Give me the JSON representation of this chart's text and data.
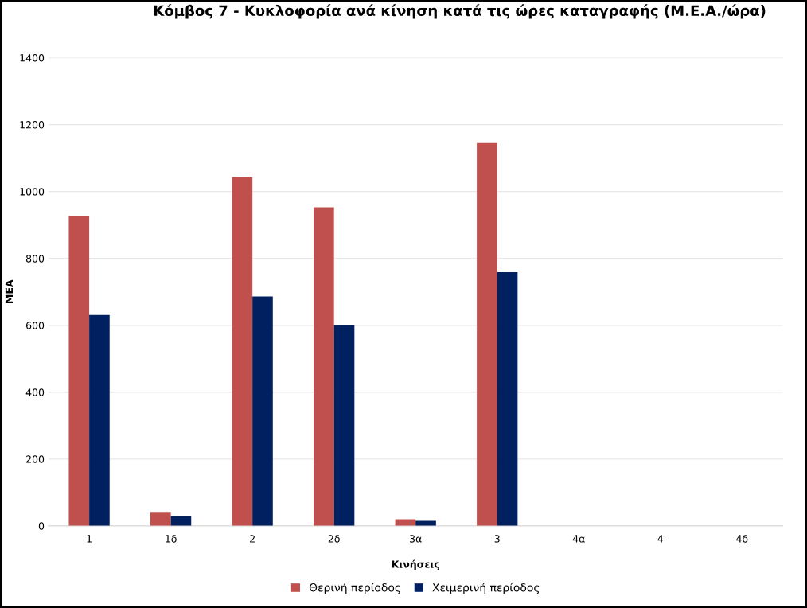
{
  "chart_data": {
    "type": "bar",
    "title": "Κόμβος 7 - Κυκλοφορία ανά κίνηση κατά τις ώρες καταγραφής (Μ.Ε.Α./ώρα)",
    "xlabel": "Κινήσεις",
    "ylabel": "ΜΕΑ",
    "categories": [
      "1",
      "1δ",
      "2",
      "2δ",
      "3α",
      "3",
      "4α",
      "4",
      "4δ"
    ],
    "series": [
      {
        "name": "Θερινή περίοδος",
        "color": "#c0504d",
        "values": [
          926,
          42,
          1043,
          953,
          20,
          1145,
          null,
          null,
          null
        ]
      },
      {
        "name": "Χειμερινή περίοδος",
        "color": "#002060",
        "values": [
          631,
          30,
          686,
          601,
          15,
          759,
          null,
          null,
          null
        ]
      }
    ],
    "ylim": [
      0,
      1400
    ],
    "yticks": [
      0,
      200,
      400,
      600,
      800,
      1000,
      1200,
      1400
    ],
    "grid": "y",
    "legend": "bottom"
  }
}
